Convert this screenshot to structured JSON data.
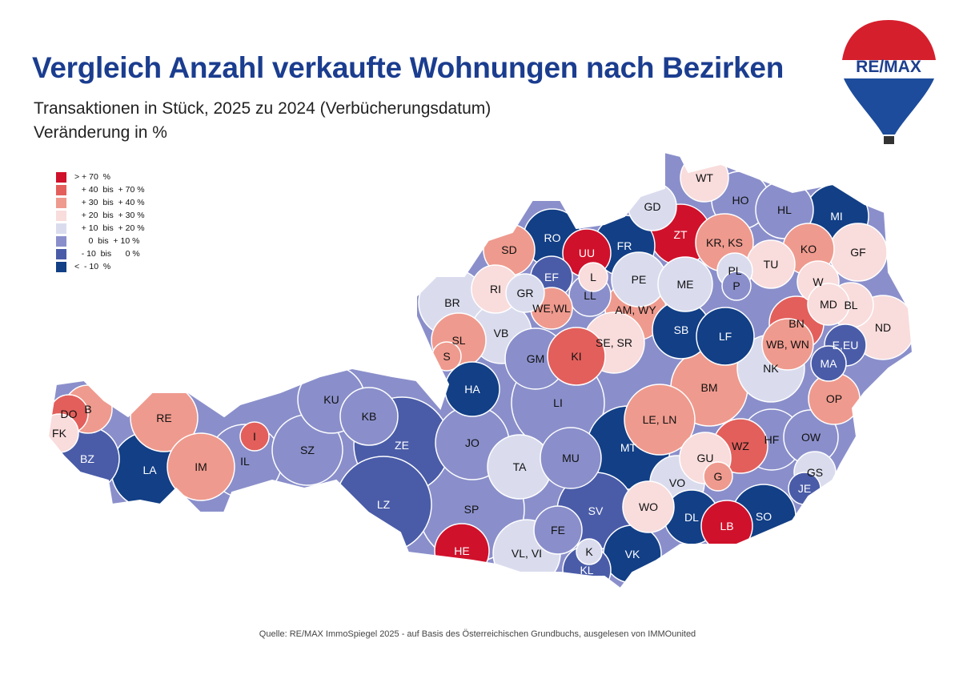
{
  "title": "Vergleich Anzahl verkaufte Wohnungen nach Bezirken",
  "subtitle1": "Transaktionen in Stück, 2025 zu 2024 (Verbücherungsdatum)",
  "subtitle2": "Veränderung in %",
  "logo_text": "RE/MAX",
  "source": "Quelle: RE/MAX ImmoSpiegel 2025 - auf Basis des Österreichischen Grundbuchs, ausgelesen von IMMOunited",
  "legend": [
    {
      "label": "> + 70  %",
      "color": "#d0112b"
    },
    {
      "label": "   + 40  bis  + 70 %",
      "color": "#e35f5b"
    },
    {
      "label": "   + 30  bis  + 40 %",
      "color": "#ef9a8e"
    },
    {
      "label": "   + 20  bis  + 30 %",
      "color": "#f9dcdc"
    },
    {
      "label": "   + 10  bis  + 20 %",
      "color": "#dadcee"
    },
    {
      "label": "      0  bis  + 10 %",
      "color": "#8a8fcb"
    },
    {
      "label": "   - 10  bis      0 %",
      "color": "#4a5ca8"
    },
    {
      "label": "<  - 10  %",
      "color": "#123f86"
    }
  ],
  "districts": [
    {
      "code": "WT",
      "cat": 3
    },
    {
      "code": "GD",
      "cat": 4
    },
    {
      "code": "HO",
      "cat": 5
    },
    {
      "code": "HL",
      "cat": 5
    },
    {
      "code": "MI",
      "cat": 7
    },
    {
      "code": "GF",
      "cat": 3
    },
    {
      "code": "ZT",
      "cat": 0
    },
    {
      "code": "KR, KS",
      "cat": 2
    },
    {
      "code": "KO",
      "cat": 2
    },
    {
      "code": "TU",
      "cat": 3
    },
    {
      "code": "W",
      "cat": 3
    },
    {
      "code": "RO",
      "cat": 7
    },
    {
      "code": "UU",
      "cat": 0
    },
    {
      "code": "FR",
      "cat": 7
    },
    {
      "code": "SD",
      "cat": 2
    },
    {
      "code": "EF",
      "cat": 6
    },
    {
      "code": "L",
      "cat": 3
    },
    {
      "code": "PE",
      "cat": 4
    },
    {
      "code": "ME",
      "cat": 4
    },
    {
      "code": "PL",
      "cat": 4
    },
    {
      "code": "P",
      "cat": 5
    },
    {
      "code": "RI",
      "cat": 3
    },
    {
      "code": "GR",
      "cat": 4
    },
    {
      "code": "LL",
      "cat": 5
    },
    {
      "code": "WE,WL",
      "cat": 2
    },
    {
      "code": "AM, WY",
      "cat": 2
    },
    {
      "code": "MD",
      "cat": 3
    },
    {
      "code": "BL",
      "cat": 3
    },
    {
      "code": "ND",
      "cat": 3
    },
    {
      "code": "BR",
      "cat": 4
    },
    {
      "code": "SB",
      "cat": 7
    },
    {
      "code": "LF",
      "cat": 7
    },
    {
      "code": "BN",
      "cat": 1
    },
    {
      "code": "VB",
      "cat": 4
    },
    {
      "code": "SE, SR",
      "cat": 3
    },
    {
      "code": "KI",
      "cat": 1
    },
    {
      "code": "WB, WN",
      "cat": 2
    },
    {
      "code": "E,EU",
      "cat": 6
    },
    {
      "code": "MA",
      "cat": 6
    },
    {
      "code": "SL",
      "cat": 2
    },
    {
      "code": "S",
      "cat": 2
    },
    {
      "code": "GM",
      "cat": 5
    },
    {
      "code": "NK",
      "cat": 4
    },
    {
      "code": "HA",
      "cat": 7
    },
    {
      "code": "LI",
      "cat": 5
    },
    {
      "code": "BM",
      "cat": 2
    },
    {
      "code": "OP",
      "cat": 2
    },
    {
      "code": "DO",
      "cat": 1
    },
    {
      "code": "B",
      "cat": 2
    },
    {
      "code": "FK",
      "cat": 3
    },
    {
      "code": "RE",
      "cat": 2
    },
    {
      "code": "KU",
      "cat": 5
    },
    {
      "code": "KB",
      "cat": 5
    },
    {
      "code": "I",
      "cat": 1
    },
    {
      "code": "LE, LN",
      "cat": 2
    },
    {
      "code": "WZ",
      "cat": 1
    },
    {
      "code": "HF",
      "cat": 5
    },
    {
      "code": "OW",
      "cat": 5
    },
    {
      "code": "BZ",
      "cat": 6
    },
    {
      "code": "LA",
      "cat": 7
    },
    {
      "code": "IM",
      "cat": 2
    },
    {
      "code": "IL",
      "cat": 5
    },
    {
      "code": "SZ",
      "cat": 5
    },
    {
      "code": "ZE",
      "cat": 6
    },
    {
      "code": "JO",
      "cat": 5
    },
    {
      "code": "MT",
      "cat": 7
    },
    {
      "code": "GU",
      "cat": 3
    },
    {
      "code": "G",
      "cat": 2
    },
    {
      "code": "TA",
      "cat": 4
    },
    {
      "code": "MU",
      "cat": 5
    },
    {
      "code": "GS",
      "cat": 4
    },
    {
      "code": "VO",
      "cat": 4
    },
    {
      "code": "JE",
      "cat": 6
    },
    {
      "code": "LZ",
      "cat": 6
    },
    {
      "code": "SP",
      "cat": 5
    },
    {
      "code": "SV",
      "cat": 6
    },
    {
      "code": "WO",
      "cat": 3
    },
    {
      "code": "DL",
      "cat": 7
    },
    {
      "code": "LB",
      "cat": 0
    },
    {
      "code": "SO",
      "cat": 7
    },
    {
      "code": "FE",
      "cat": 5
    },
    {
      "code": "HE",
      "cat": 0
    },
    {
      "code": "VL, VI",
      "cat": 4
    },
    {
      "code": "K",
      "cat": 4
    },
    {
      "code": "KL",
      "cat": 6
    },
    {
      "code": "VK",
      "cat": 7
    }
  ]
}
